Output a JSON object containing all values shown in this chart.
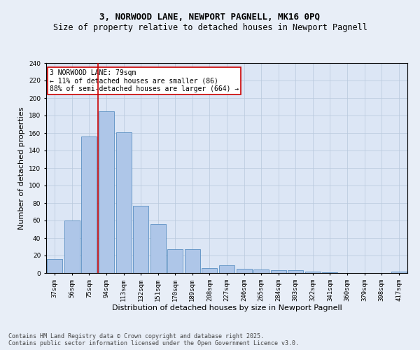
{
  "title1": "3, NORWOOD LANE, NEWPORT PAGNELL, MK16 0PQ",
  "title2": "Size of property relative to detached houses in Newport Pagnell",
  "xlabel": "Distribution of detached houses by size in Newport Pagnell",
  "ylabel": "Number of detached properties",
  "categories": [
    "37sqm",
    "56sqm",
    "75sqm",
    "94sqm",
    "113sqm",
    "132sqm",
    "151sqm",
    "170sqm",
    "189sqm",
    "208sqm",
    "227sqm",
    "246sqm",
    "265sqm",
    "284sqm",
    "303sqm",
    "322sqm",
    "341sqm",
    "360sqm",
    "379sqm",
    "398sqm",
    "417sqm"
  ],
  "values": [
    16,
    60,
    156,
    185,
    161,
    77,
    56,
    27,
    27,
    6,
    9,
    5,
    4,
    3,
    3,
    2,
    1,
    0,
    0,
    0,
    2
  ],
  "bar_color": "#aec6e8",
  "bar_edge_color": "#5a8fc2",
  "vline_x_idx": 2,
  "vline_color": "#cc0000",
  "annotation_text": "3 NORWOOD LANE: 79sqm\n← 11% of detached houses are smaller (86)\n88% of semi-detached houses are larger (664) →",
  "annotation_box_color": "#ffffff",
  "annotation_box_edge": "#cc0000",
  "ylim": [
    0,
    240
  ],
  "yticks": [
    0,
    20,
    40,
    60,
    80,
    100,
    120,
    140,
    160,
    180,
    200,
    220,
    240
  ],
  "bg_color": "#e8eef7",
  "plot_bg_color": "#dce6f5",
  "footer": "Contains HM Land Registry data © Crown copyright and database right 2025.\nContains public sector information licensed under the Open Government Licence v3.0.",
  "title_fontsize": 9,
  "subtitle_fontsize": 8.5,
  "tick_fontsize": 6.5,
  "label_fontsize": 8,
  "footer_fontsize": 6,
  "annotation_fontsize": 7
}
